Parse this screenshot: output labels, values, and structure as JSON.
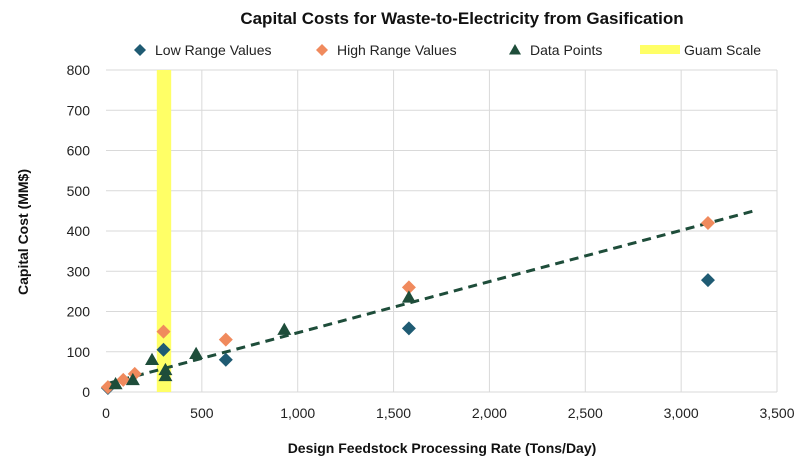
{
  "chart_data": {
    "type": "scatter",
    "title": "Capital Costs for Waste-to-Electricity from Gasification",
    "xlabel": "Design Feedstock Processing Rate (Tons/Day)",
    "ylabel": "Capital Cost (MM$)",
    "xlim": [
      0,
      3500
    ],
    "ylim": [
      0,
      800
    ],
    "x_ticks": [
      0,
      500,
      1000,
      1500,
      2000,
      2500,
      3000,
      3500
    ],
    "x_tick_labels": [
      "0",
      "500",
      "1,000",
      "1,500",
      "2,000",
      "2,500",
      "3,000",
      "3,500"
    ],
    "y_ticks": [
      0,
      100,
      200,
      300,
      400,
      500,
      600,
      700,
      800
    ],
    "y_tick_labels": [
      "0",
      "100",
      "200",
      "300",
      "400",
      "500",
      "600",
      "700",
      "800"
    ],
    "grid": true,
    "legend_position": "top",
    "series": [
      {
        "name": "Low Range Values",
        "marker": "diamond",
        "color": "#1f5b73",
        "points": [
          [
            10,
            10
          ],
          [
            300,
            105
          ],
          [
            625,
            80
          ],
          [
            1580,
            158
          ],
          [
            3140,
            278
          ]
        ]
      },
      {
        "name": "High Range Values",
        "marker": "diamond",
        "color": "#f08a5d",
        "points": [
          [
            10,
            12
          ],
          [
            90,
            30
          ],
          [
            150,
            45
          ],
          [
            300,
            150
          ],
          [
            625,
            130
          ],
          [
            1580,
            260
          ],
          [
            3140,
            420
          ]
        ]
      },
      {
        "name": "Data Points",
        "marker": "triangle",
        "color": "#1e4d3a",
        "points": [
          [
            50,
            20
          ],
          [
            140,
            30
          ],
          [
            240,
            80
          ],
          [
            310,
            40
          ],
          [
            310,
            55
          ],
          [
            470,
            95
          ],
          [
            930,
            155
          ],
          [
            1580,
            235
          ]
        ]
      }
    ],
    "trendline": {
      "style": "dashed",
      "color": "#1e4d3a",
      "from": [
        0,
        20
      ],
      "to": [
        3380,
        450
      ]
    },
    "highlight_band": {
      "name": "Guam Scale",
      "color": "#ffff66",
      "x_range": [
        265,
        340
      ]
    }
  }
}
